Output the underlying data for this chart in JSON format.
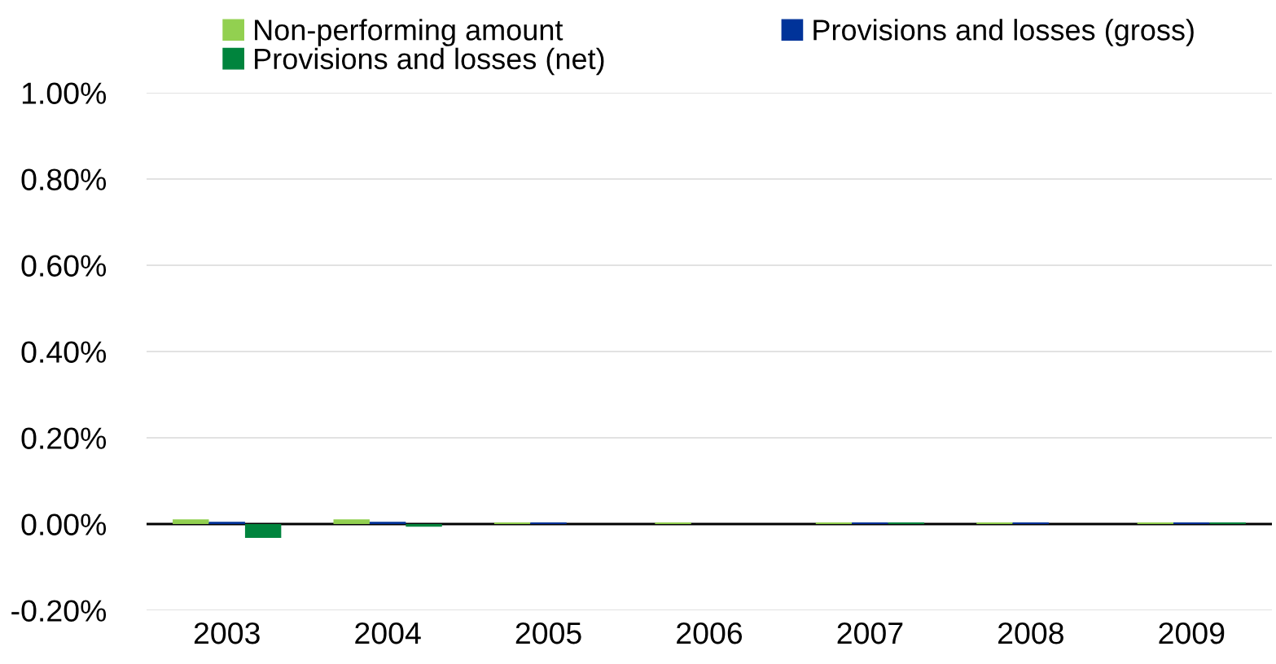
{
  "chart_data": {
    "type": "bar",
    "categories": [
      "2003",
      "2004",
      "2005",
      "2006",
      "2007",
      "2008",
      "2009"
    ],
    "series": [
      {
        "name": "Non-performing amount",
        "color": "#92d050",
        "values": [
          0.011,
          0.011,
          0.004,
          0.004,
          0.004,
          0.004,
          0.004
        ]
      },
      {
        "name": "Provisions and losses (gross)",
        "color": "#003399",
        "values": [
          0.005,
          0.005,
          0.004,
          0.0,
          0.004,
          0.004,
          0.004
        ]
      },
      {
        "name": "Provisions and losses (net)",
        "color": "#00843d",
        "values": [
          -0.032,
          -0.006,
          0.0,
          0.0,
          0.004,
          0.0,
          0.004
        ]
      }
    ],
    "ylim": [
      -0.2,
      1.0
    ],
    "yticks": [
      {
        "value": -0.2,
        "label": "-0.20%"
      },
      {
        "value": 0.0,
        "label": "0.00%"
      },
      {
        "value": 0.2,
        "label": "0.20%"
      },
      {
        "value": 0.4,
        "label": "0.40%"
      },
      {
        "value": 0.6,
        "label": "0.60%"
      },
      {
        "value": 0.8,
        "label": "0.80%"
      },
      {
        "value": 1.0,
        "label": "1.00%"
      }
    ],
    "ref_lines": [
      {
        "axis": "y",
        "value": 0.0,
        "color": "#000000"
      }
    ],
    "grid": "y",
    "legend": "top"
  }
}
